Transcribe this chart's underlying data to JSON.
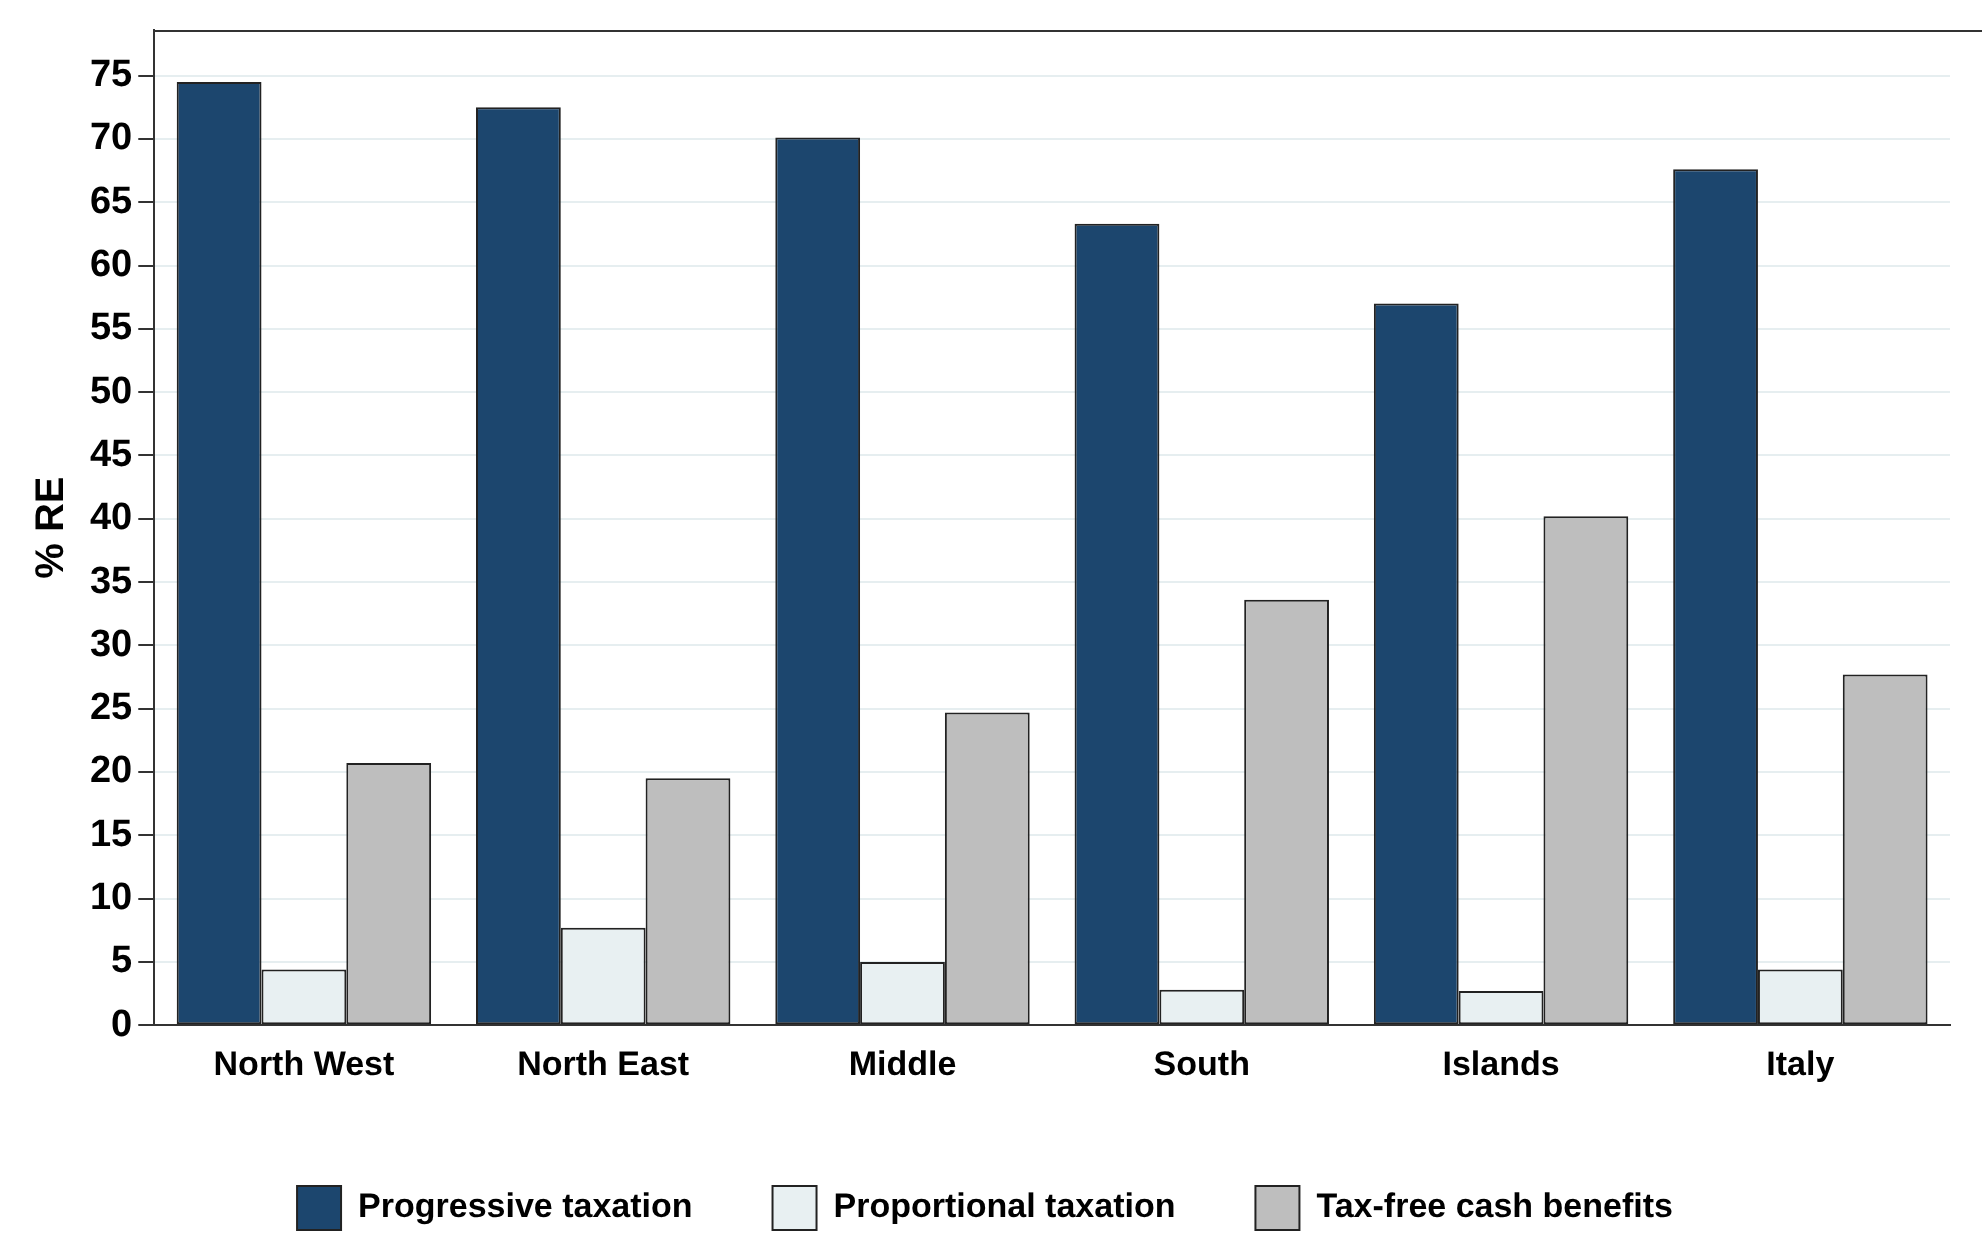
{
  "chart_data": {
    "type": "bar",
    "ylabel": "% RE",
    "categories": [
      "North West",
      "North East",
      "Middle",
      "South",
      "Islands",
      "Italy"
    ],
    "series": [
      {
        "name": "Progressive taxation",
        "color": "#1c466e",
        "values": [
          74.5,
          72.5,
          70.1,
          63.3,
          57.0,
          67.6
        ]
      },
      {
        "name": "Proportional taxation",
        "color": "#e8f0f2",
        "values": [
          4.4,
          7.7,
          5.0,
          2.8,
          2.7,
          4.4
        ]
      },
      {
        "name": "Tax-free cash benefits",
        "color": "#bebebe",
        "values": [
          20.7,
          19.5,
          24.7,
          33.6,
          40.2,
          27.7
        ]
      }
    ],
    "ylim": [
      0,
      78.6
    ],
    "yticks": [
      0,
      5,
      10,
      15,
      20,
      25,
      30,
      35,
      40,
      45,
      50,
      55,
      60,
      65,
      70,
      75
    ],
    "grid": "y",
    "legend": "bottom"
  }
}
